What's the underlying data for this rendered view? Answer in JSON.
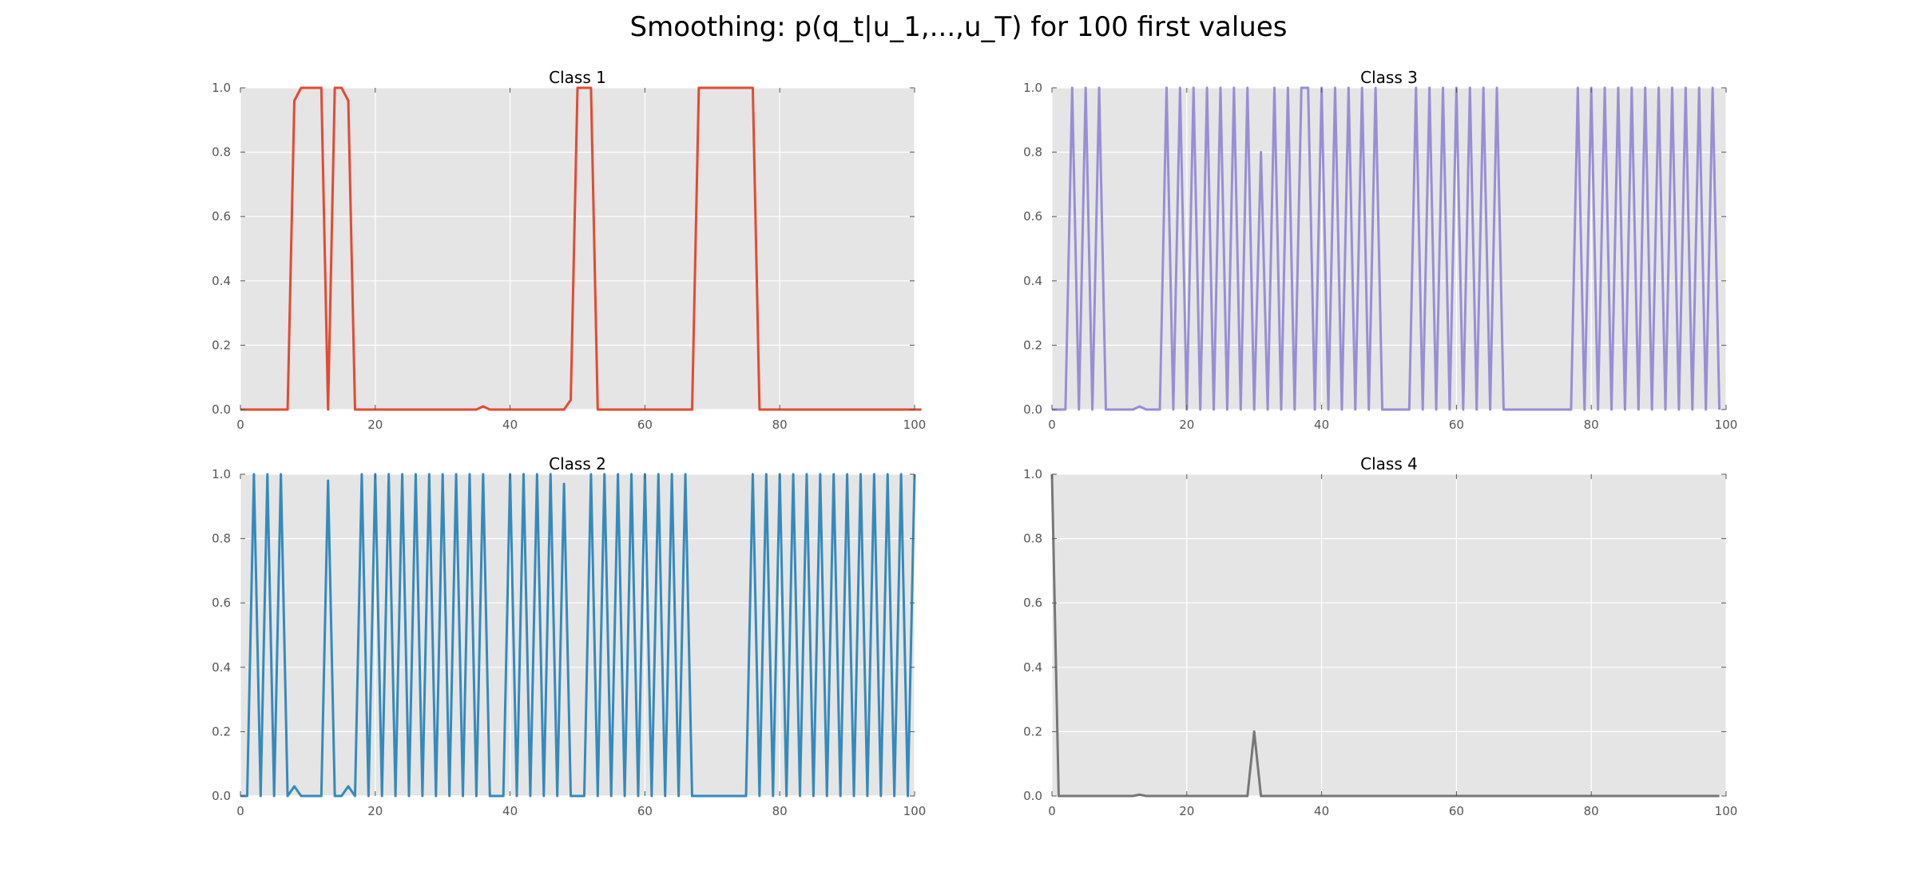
{
  "chart_data": {
    "type": "line",
    "title": "Smoothing: p(q_t|u_1,...,u_T) for 100 first values",
    "grid": true,
    "panels": [
      {
        "title": "Class 1",
        "color": "#E24A33",
        "xlim": [
          0,
          100
        ],
        "ylim": [
          0.0,
          1.0
        ],
        "xticks": [
          "0",
          "20",
          "40",
          "60",
          "80",
          "100"
        ],
        "yticks": [
          "0.0",
          "0.2",
          "0.4",
          "0.6",
          "0.8",
          "1.0"
        ],
        "x_start": 0,
        "values": [
          0,
          0,
          0,
          0,
          0,
          0,
          0,
          0,
          0.96,
          1,
          1,
          1,
          1,
          0,
          1,
          1,
          0.96,
          0,
          0,
          0,
          0,
          0,
          0,
          0,
          0,
          0,
          0,
          0,
          0,
          0,
          0,
          0,
          0,
          0,
          0,
          0,
          0.01,
          0,
          0,
          0,
          0,
          0,
          0,
          0,
          0,
          0,
          0,
          0,
          0,
          0.03,
          1,
          1,
          1,
          0,
          0,
          0,
          0,
          0,
          0,
          0,
          0,
          0,
          0,
          0,
          0,
          0,
          0,
          0,
          1,
          1,
          1,
          1,
          1,
          1,
          1,
          1,
          1,
          0,
          0,
          0,
          0,
          0,
          0,
          0,
          0,
          0,
          0,
          0,
          0,
          0,
          0,
          0,
          0,
          0,
          0,
          0,
          0,
          0,
          0,
          0,
          0,
          0
        ]
      },
      {
        "title": "Class 3",
        "color": "#988ED5",
        "xlim": [
          0,
          100
        ],
        "ylim": [
          0.0,
          1.0
        ],
        "xticks": [
          "0",
          "20",
          "40",
          "60",
          "80",
          "100"
        ],
        "yticks": [
          "0.0",
          "0.2",
          "0.4",
          "0.6",
          "0.8",
          "1.0"
        ],
        "x_start": 0,
        "values": [
          0,
          0,
          0,
          1,
          0,
          1,
          0,
          1,
          0,
          0,
          0,
          0,
          0,
          0.01,
          0,
          0,
          0,
          1,
          0,
          1,
          0,
          1,
          0,
          1,
          0,
          1,
          0,
          1,
          0,
          1,
          0,
          0.8,
          0,
          1,
          0,
          1,
          0,
          1,
          1,
          0,
          1,
          0,
          1,
          0,
          1,
          0,
          1,
          0,
          1,
          0,
          0,
          0,
          0,
          0,
          1,
          0,
          1,
          0,
          1,
          0,
          1,
          0,
          1,
          0,
          1,
          0,
          1,
          0,
          0,
          0,
          0,
          0,
          0,
          0,
          0,
          0,
          0,
          0,
          1,
          0,
          1,
          0,
          1,
          0,
          1,
          0,
          1,
          0,
          1,
          0,
          1,
          0,
          1,
          0,
          1,
          0,
          1,
          0,
          1,
          0
        ]
      },
      {
        "title": "Class 2",
        "color": "#348ABD",
        "xlim": [
          0,
          100
        ],
        "ylim": [
          0.0,
          1.0
        ],
        "xticks": [
          "0",
          "20",
          "40",
          "60",
          "80",
          "100"
        ],
        "yticks": [
          "0.0",
          "0.2",
          "0.4",
          "0.6",
          "0.8",
          "1.0"
        ],
        "x_start": 0,
        "values": [
          0,
          0,
          1,
          0,
          1,
          0,
          1,
          0,
          0.03,
          0,
          0,
          0,
          0,
          0.98,
          0,
          0,
          0.03,
          0,
          1,
          0,
          1,
          0,
          1,
          0,
          1,
          0,
          1,
          0,
          1,
          0,
          1,
          0,
          1,
          0,
          1,
          0,
          1,
          0,
          0,
          0,
          1,
          0,
          1,
          0,
          1,
          0,
          1,
          0,
          0.97,
          0,
          0,
          0,
          1,
          0,
          1,
          0,
          1,
          0,
          1,
          0,
          1,
          0,
          1,
          0,
          1,
          0,
          1,
          0,
          0,
          0,
          0,
          0,
          0,
          0,
          0,
          0,
          1,
          0,
          1,
          0,
          1,
          0,
          1,
          0,
          1,
          0,
          1,
          0,
          1,
          0,
          1,
          0,
          1,
          0,
          1,
          0,
          1,
          0,
          1,
          0,
          1
        ]
      },
      {
        "title": "Class 4",
        "color": "#777777",
        "xlim": [
          0,
          100
        ],
        "ylim": [
          0.0,
          1.0
        ],
        "xticks": [
          "0",
          "20",
          "40",
          "60",
          "80",
          "100"
        ],
        "yticks": [
          "0.0",
          "0.2",
          "0.4",
          "0.6",
          "0.8",
          "1.0"
        ],
        "x_start": 0,
        "values": [
          1,
          0,
          0,
          0,
          0,
          0,
          0,
          0,
          0,
          0,
          0,
          0,
          0,
          0.004,
          0,
          0,
          0,
          0,
          0,
          0,
          0,
          0,
          0,
          0,
          0,
          0,
          0,
          0,
          0,
          0,
          0.2,
          0,
          0,
          0,
          0,
          0,
          0,
          0,
          0,
          0,
          0,
          0,
          0,
          0,
          0,
          0,
          0,
          0,
          0,
          0,
          0,
          0,
          0,
          0,
          0,
          0,
          0,
          0,
          0,
          0,
          0,
          0,
          0,
          0,
          0,
          0,
          0,
          0,
          0,
          0,
          0,
          0,
          0,
          0,
          0,
          0,
          0,
          0,
          0,
          0,
          0,
          0,
          0,
          0,
          0,
          0,
          0,
          0,
          0,
          0,
          0,
          0,
          0,
          0,
          0,
          0,
          0,
          0,
          0,
          0
        ]
      }
    ]
  }
}
